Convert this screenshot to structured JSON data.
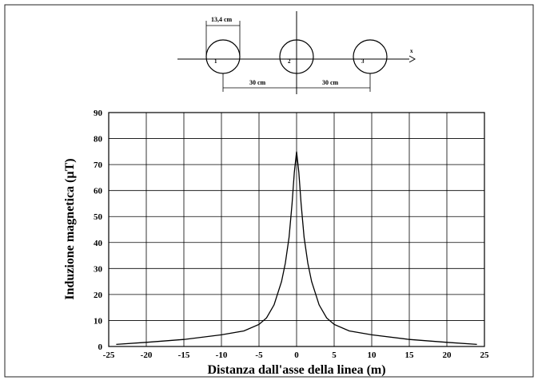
{
  "diagram": {
    "conductor_diameter_label": "13,4 cm",
    "spacing_left_label": "30 cm",
    "spacing_right_label": "30 cm",
    "axis_label": "x",
    "conductors": [
      "1",
      "2",
      "3"
    ]
  },
  "chart_data": {
    "type": "line",
    "title": "",
    "xlabel": "Distanza dall'asse della linea (m)",
    "ylabel": "Induzione magnetica (µT)",
    "xlim": [
      -25,
      25
    ],
    "ylim": [
      0,
      90
    ],
    "xticks": [
      -25,
      -20,
      -15,
      -10,
      -5,
      0,
      5,
      10,
      15,
      20,
      25
    ],
    "yticks": [
      0,
      10,
      20,
      30,
      40,
      50,
      60,
      70,
      80,
      90
    ],
    "grid": true,
    "series": [
      {
        "x": [
          -24,
          -20,
          -15,
          -10,
          -7,
          -5,
          -4,
          -3,
          -2,
          -1.5,
          -1,
          -0.6,
          -0.3,
          0,
          0.3,
          0.6,
          1,
          1.5,
          2,
          3,
          4,
          5,
          7,
          10,
          15,
          20,
          24
        ],
        "y": [
          0.8,
          1.6,
          2.7,
          4.5,
          6,
          8.5,
          11,
          16,
          25,
          32,
          42,
          55,
          67,
          75,
          67,
          55,
          42,
          32,
          25,
          16,
          11,
          8.5,
          6,
          4.5,
          2.7,
          1.6,
          0.8
        ]
      }
    ]
  }
}
